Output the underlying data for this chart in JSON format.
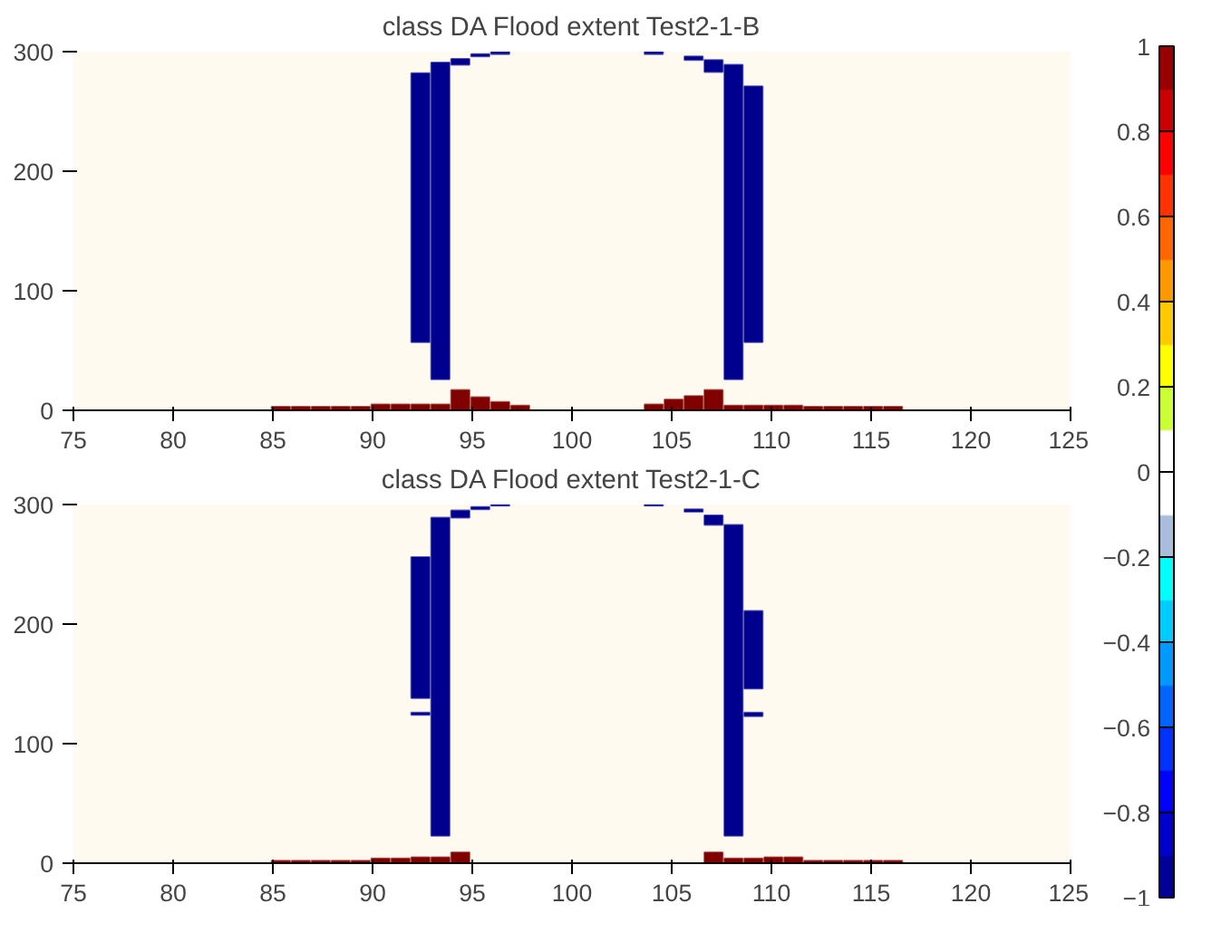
{
  "chart_data": [
    {
      "type": "bar",
      "title": "class DA Flood extent Test2-1-B",
      "xlim": [
        75,
        125
      ],
      "xticks": [
        75,
        80,
        85,
        90,
        95,
        100,
        105,
        110,
        115,
        120,
        125
      ],
      "ylim": [
        0,
        300
      ],
      "yticks": [
        0,
        100,
        200,
        300
      ],
      "clim": [
        -1,
        1
      ],
      "cticks": [
        -1,
        -0.8,
        -0.6,
        -0.4,
        -0.2,
        0,
        0.2,
        0.4,
        0.6,
        0.8,
        1
      ],
      "series": [
        {
          "color": "#00008f",
          "x": [
            92.4,
            93.4,
            94.4,
            95.4,
            96.4,
            104.1,
            106.1,
            107.1,
            108.1,
            109.1
          ],
          "base": [
            57,
            26,
            289,
            296,
            298,
            298,
            293,
            283,
            26,
            57
          ],
          "values": [
            225,
            265,
            5,
            2,
            2,
            2,
            3,
            10,
            263,
            214
          ]
        },
        {
          "color": "#800000",
          "x": [
            85.4,
            86.4,
            87.4,
            88.4,
            89.4,
            90.4,
            91.4,
            92.4,
            93.4,
            94.4,
            95.4,
            96.4,
            97.4,
            104.1,
            105.1,
            106.1,
            107.1,
            108.1,
            109.1,
            110.1,
            111.1,
            112.1,
            113.1,
            114.1,
            115.1,
            116.1
          ],
          "values": [
            3,
            3,
            3,
            3,
            3,
            5,
            5,
            5,
            5,
            17,
            11,
            7,
            4,
            5,
            9,
            12,
            17,
            4,
            4,
            4,
            4,
            3,
            3,
            3,
            3,
            3
          ]
        }
      ]
    },
    {
      "type": "bar",
      "title": "class DA Flood extent Test2-1-C",
      "xlim": [
        75,
        125
      ],
      "xticks": [
        75,
        80,
        85,
        90,
        95,
        100,
        105,
        110,
        115,
        120,
        125
      ],
      "ylim": [
        0,
        300
      ],
      "yticks": [
        0,
        100,
        200,
        300
      ],
      "series": [
        {
          "color": "#00008f",
          "x": [
            92.4,
            93.4,
            94.4,
            95.4,
            96.4,
            104.1,
            106.1,
            107.1,
            108.1,
            109.1
          ],
          "base": [
            138,
            23,
            289,
            296,
            299,
            299,
            294,
            283,
            23,
            146
          ],
          "values": [
            118,
            266,
            6,
            2,
            1,
            1,
            2,
            8,
            260,
            65
          ]
        },
        {
          "color": "#00008f",
          "x": [
            92.4,
            109.1
          ],
          "base": [
            124,
            123
          ],
          "values": [
            2,
            3
          ]
        },
        {
          "color": "#800000",
          "x": [
            85.4,
            86.4,
            87.4,
            88.4,
            89.4,
            90.4,
            91.4,
            92.4,
            93.4,
            94.4,
            107.1,
            108.1,
            109.1,
            110.1,
            111.1,
            112.1,
            113.1,
            114.1,
            115.1,
            116.1
          ],
          "values": [
            2,
            2,
            2,
            2,
            2,
            4,
            4,
            5,
            5,
            9,
            9,
            4,
            4,
            5,
            5,
            2,
            2,
            2,
            2,
            2
          ]
        }
      ]
    }
  ]
}
